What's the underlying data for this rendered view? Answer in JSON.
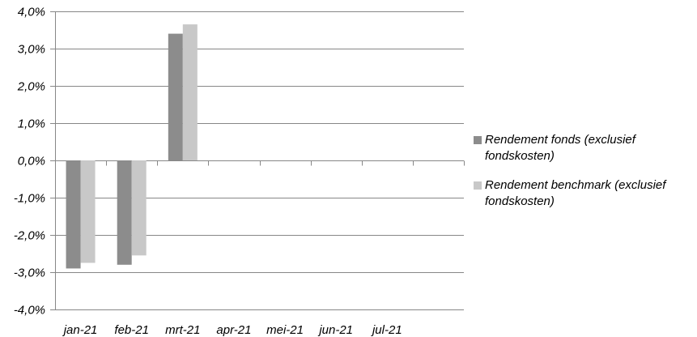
{
  "chart_data": {
    "type": "bar",
    "categories": [
      "jan-21",
      "feb-21",
      "mrt-21",
      "apr-21",
      "mei-21",
      "jun-21",
      "jul-21"
    ],
    "series": [
      {
        "name": "Rendement fonds (exclusief fondskosten)",
        "values": [
          -2.9,
          -2.8,
          3.4,
          null,
          null,
          null,
          null
        ],
        "color": "#8c8c8c"
      },
      {
        "name": "Rendement benchmark (exclusief fondskosten)",
        "values": [
          -2.75,
          -2.55,
          3.65,
          null,
          null,
          null,
          null
        ],
        "color": "#c8c8c8"
      }
    ],
    "ylim": [
      -4.0,
      4.0
    ],
    "yticks": [
      "4,0%",
      "3,0%",
      "2,0%",
      "1,0%",
      "0,0%",
      "-1,0%",
      "-2,0%",
      "-3,0%",
      "-4,0%"
    ],
    "ytick_values": [
      4.0,
      3.0,
      2.0,
      1.0,
      0.0,
      -1.0,
      -2.0,
      -3.0,
      -4.0
    ],
    "grid": true,
    "legend_position": "right",
    "title": "",
    "xlabel": "",
    "ylabel": ""
  },
  "colors": {
    "gridline": "#878787",
    "axis": "#878787"
  }
}
